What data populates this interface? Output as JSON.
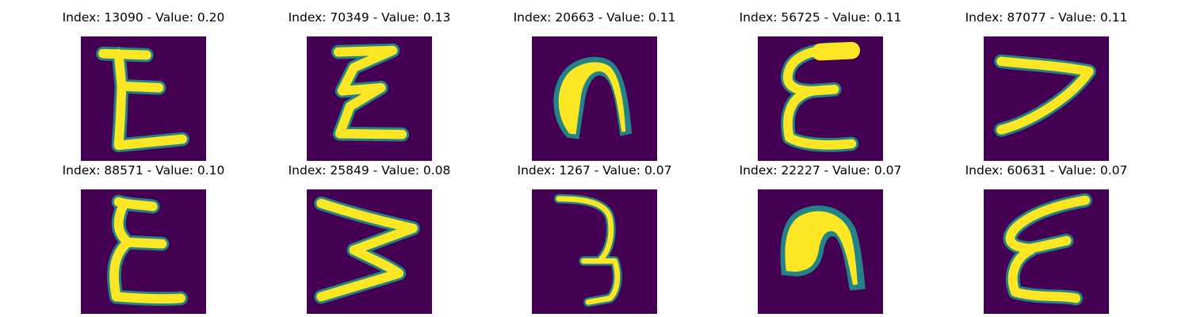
{
  "colors": {
    "background": "#440154",
    "stroke": "#fde725",
    "edge": "#21918c"
  },
  "panels": [
    {
      "title": "Index: 13090 - Value: 0.20",
      "glyph": "E"
    },
    {
      "title": "Index: 70349 - Value: 0.13",
      "glyph": "E"
    },
    {
      "title": "Index: 20663 - Value: 0.11",
      "glyph": "n"
    },
    {
      "title": "Index: 56725 - Value: 0.11",
      "glyph": "E"
    },
    {
      "title": "Index: 87077 - Value: 0.11",
      "glyph": "7"
    },
    {
      "title": "Index: 88571 - Value: 0.10",
      "glyph": "E"
    },
    {
      "title": "Index: 25849 - Value: 0.08",
      "glyph": "W"
    },
    {
      "title": "Index: 1267 - Value: 0.07",
      "glyph": "3"
    },
    {
      "title": "Index: 22227 - Value: 0.07",
      "glyph": "n"
    },
    {
      "title": "Index: 60631 - Value: 0.07",
      "glyph": "E"
    }
  ]
}
